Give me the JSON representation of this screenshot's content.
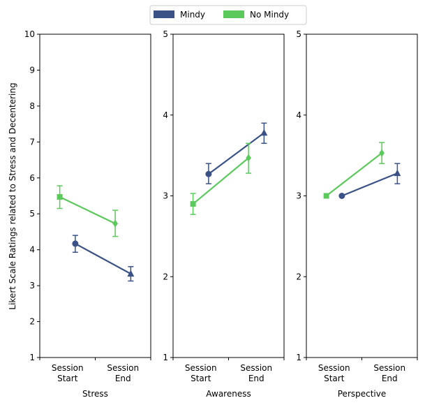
{
  "legend": {
    "position": "top-center",
    "items": [
      {
        "name": "Mindy",
        "color": "#3b5287"
      },
      {
        "name": "No Mindy",
        "color": "#5cc95c"
      }
    ]
  },
  "ylabel": "Likert Scale Ratings related to Stress and Decentering",
  "chart_data": [
    {
      "type": "line",
      "xlabel": "Stress",
      "categories": [
        "Session\nStart",
        "Session\nEnd"
      ],
      "ylim": [
        1,
        10
      ],
      "yticks": [
        1,
        2,
        3,
        4,
        5,
        6,
        7,
        8,
        9,
        10
      ],
      "series": [
        {
          "name": "Mindy",
          "color": "#3b5287",
          "markers": [
            "circle",
            "triangle"
          ],
          "values": [
            4.17,
            3.33
          ],
          "errors": [
            [
              3.93,
              4.4
            ],
            [
              3.13,
              3.53
            ]
          ]
        },
        {
          "name": "No Mindy",
          "color": "#5cc95c",
          "markers": [
            "square",
            "diamond"
          ],
          "values": [
            5.47,
            4.73
          ],
          "errors": [
            [
              5.15,
              5.78
            ],
            [
              4.37,
              5.1
            ]
          ]
        }
      ]
    },
    {
      "type": "line",
      "xlabel": "Awareness",
      "categories": [
        "Session\nStart",
        "Session\nEnd"
      ],
      "ylim": [
        1,
        5
      ],
      "yticks": [
        1,
        2,
        3,
        4,
        5
      ],
      "series": [
        {
          "name": "Mindy",
          "color": "#3b5287",
          "markers": [
            "circle",
            "triangle"
          ],
          "values": [
            3.27,
            3.78
          ],
          "errors": [
            [
              3.15,
              3.4
            ],
            [
              3.65,
              3.9
            ]
          ]
        },
        {
          "name": "No Mindy",
          "color": "#5cc95c",
          "markers": [
            "square",
            "diamond"
          ],
          "values": [
            2.9,
            3.47
          ],
          "errors": [
            [
              2.77,
              3.03
            ],
            [
              3.28,
              3.65
            ]
          ]
        }
      ]
    },
    {
      "type": "line",
      "xlabel": "Perspective",
      "categories": [
        "Session\nStart",
        "Session\nEnd"
      ],
      "ylim": [
        1,
        5
      ],
      "yticks": [
        1,
        2,
        3,
        4,
        5
      ],
      "series": [
        {
          "name": "Mindy",
          "color": "#3b5287",
          "markers": [
            "circle",
            "triangle"
          ],
          "values": [
            3.0,
            3.28
          ],
          "errors": [
            [
              3.0,
              3.0
            ],
            [
              3.15,
              3.4
            ]
          ]
        },
        {
          "name": "No Mindy",
          "color": "#5cc95c",
          "markers": [
            "square",
            "diamond"
          ],
          "values": [
            3.0,
            3.53
          ],
          "errors": [
            [
              3.0,
              3.0
            ],
            [
              3.4,
              3.66
            ]
          ]
        }
      ]
    }
  ]
}
